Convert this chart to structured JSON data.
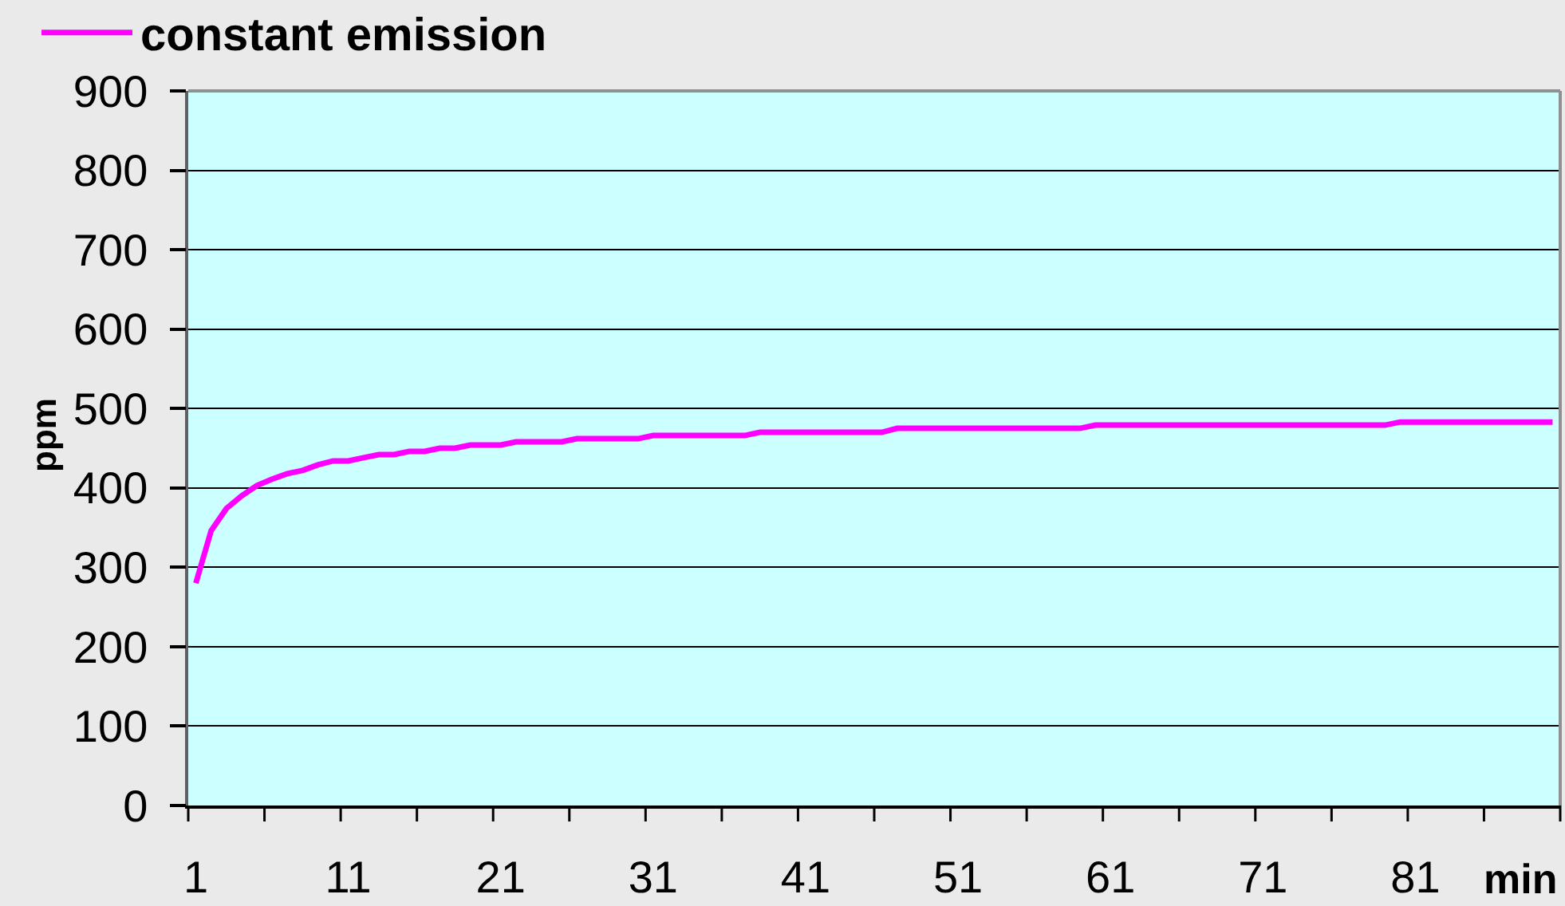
{
  "chart_data": {
    "type": "line",
    "xlabel": "min",
    "ylabel": "ppm",
    "categories": [
      "1",
      null,
      null,
      null,
      null,
      null,
      null,
      null,
      null,
      null,
      "11",
      null,
      null,
      null,
      null,
      null,
      null,
      null,
      null,
      null,
      "21",
      null,
      null,
      null,
      null,
      null,
      null,
      null,
      null,
      null,
      "31",
      null,
      null,
      null,
      null,
      null,
      null,
      null,
      null,
      null,
      "41",
      null,
      null,
      null,
      null,
      null,
      null,
      null,
      null,
      null,
      "51",
      null,
      null,
      null,
      null,
      null,
      null,
      null,
      null,
      null,
      "61",
      null,
      null,
      null,
      null,
      null,
      null,
      null,
      null,
      null,
      "71",
      null,
      null,
      null,
      null,
      null,
      null,
      null,
      null,
      null,
      "81",
      null,
      null,
      null,
      null,
      null,
      null,
      null,
      null,
      null
    ],
    "series": [
      {
        "name": "constant emission",
        "color": "#ff00ff",
        "values": [
          280,
          346,
          374,
          390,
          403,
          411,
          418,
          422,
          429,
          434,
          434,
          438,
          442,
          442,
          446,
          446,
          450,
          450,
          454,
          454,
          454,
          458,
          458,
          458,
          458,
          462,
          462,
          462,
          462,
          462,
          466,
          466,
          466,
          466,
          466,
          466,
          466,
          470,
          470,
          470,
          470,
          470,
          470,
          470,
          470,
          470,
          475,
          475,
          475,
          475,
          475,
          475,
          475,
          475,
          475,
          475,
          475,
          475,
          475,
          479,
          479,
          479,
          479,
          479,
          479,
          479,
          479,
          479,
          479,
          479,
          479,
          479,
          479,
          479,
          479,
          479,
          479,
          479,
          479,
          483,
          483,
          483,
          483,
          483,
          483,
          483,
          483,
          483,
          483,
          483
        ]
      }
    ],
    "ylim": [
      0,
      900
    ],
    "yticks": [
      0,
      100,
      200,
      300,
      400,
      500,
      600,
      700,
      800,
      900
    ],
    "grid": "y",
    "legend": "top left"
  }
}
